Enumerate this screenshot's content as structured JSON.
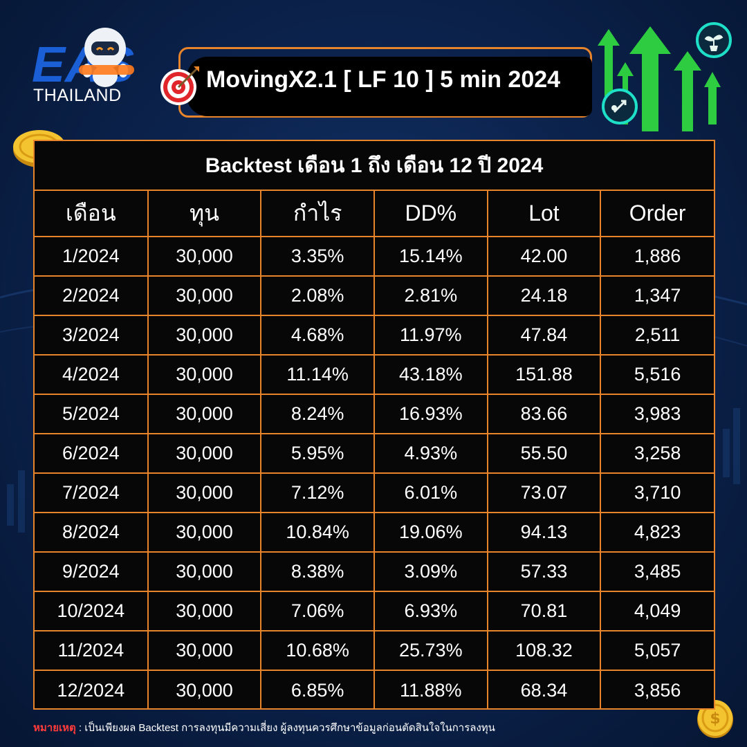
{
  "brand": {
    "logo_text": "EAS",
    "subtitle": "THAILAND"
  },
  "title": "MovingX2.1 [ LF 10 ] 5 min 2024",
  "table": {
    "caption": "Backtest เดือน 1 ถึง เดือน 12 ปี 2024",
    "headers": [
      "เดือน",
      "ทุน",
      "กำไร",
      "DD%",
      "Lot",
      "Order"
    ],
    "rows": [
      [
        "1/2024",
        "30,000",
        "3.35%",
        "15.14%",
        "42.00",
        "1,886"
      ],
      [
        "2/2024",
        "30,000",
        "2.08%",
        "2.81%",
        "24.18",
        "1,347"
      ],
      [
        "3/2024",
        "30,000",
        "4.68%",
        "11.97%",
        "47.84",
        "2,511"
      ],
      [
        "4/2024",
        "30,000",
        "11.14%",
        "43.18%",
        "151.88",
        "5,516"
      ],
      [
        "5/2024",
        "30,000",
        "8.24%",
        "16.93%",
        "83.66",
        "3,983"
      ],
      [
        "6/2024",
        "30,000",
        "5.95%",
        "4.93%",
        "55.50",
        "3,258"
      ],
      [
        "7/2024",
        "30,000",
        "7.12%",
        "6.01%",
        "73.07",
        "3,710"
      ],
      [
        "8/2024",
        "30,000",
        "10.84%",
        "19.06%",
        "94.13",
        "4,823"
      ],
      [
        "9/2024",
        "30,000",
        "8.38%",
        "3.09%",
        "57.33",
        "3,485"
      ],
      [
        "10/2024",
        "30,000",
        "7.06%",
        "6.93%",
        "70.81",
        "4,049"
      ],
      [
        "11/2024",
        "30,000",
        "10.68%",
        "25.73%",
        "108.32",
        "5,057"
      ],
      [
        "12/2024",
        "30,000",
        "6.85%",
        "11.88%",
        "68.34",
        "3,856"
      ]
    ]
  },
  "note": {
    "label": "หมายเหตุ",
    "text": " : เป็นเพียงผล Backtest การลงทุนมีความเสี่ยง ผู้ลงทุนควรศึกษาข้อมูลก่อนตัดสินใจในการลงทุน"
  },
  "colors": {
    "accent": "#e8852a",
    "note_label": "#ff3b3b",
    "arrow_green": "#2ecc40",
    "background": "#0c2450"
  },
  "icons": [
    "robot-mascot-icon",
    "target-icon",
    "growth-arrows-icon",
    "plant-coin-icon",
    "rocket-coin-icon",
    "gold-coin-icon"
  ]
}
